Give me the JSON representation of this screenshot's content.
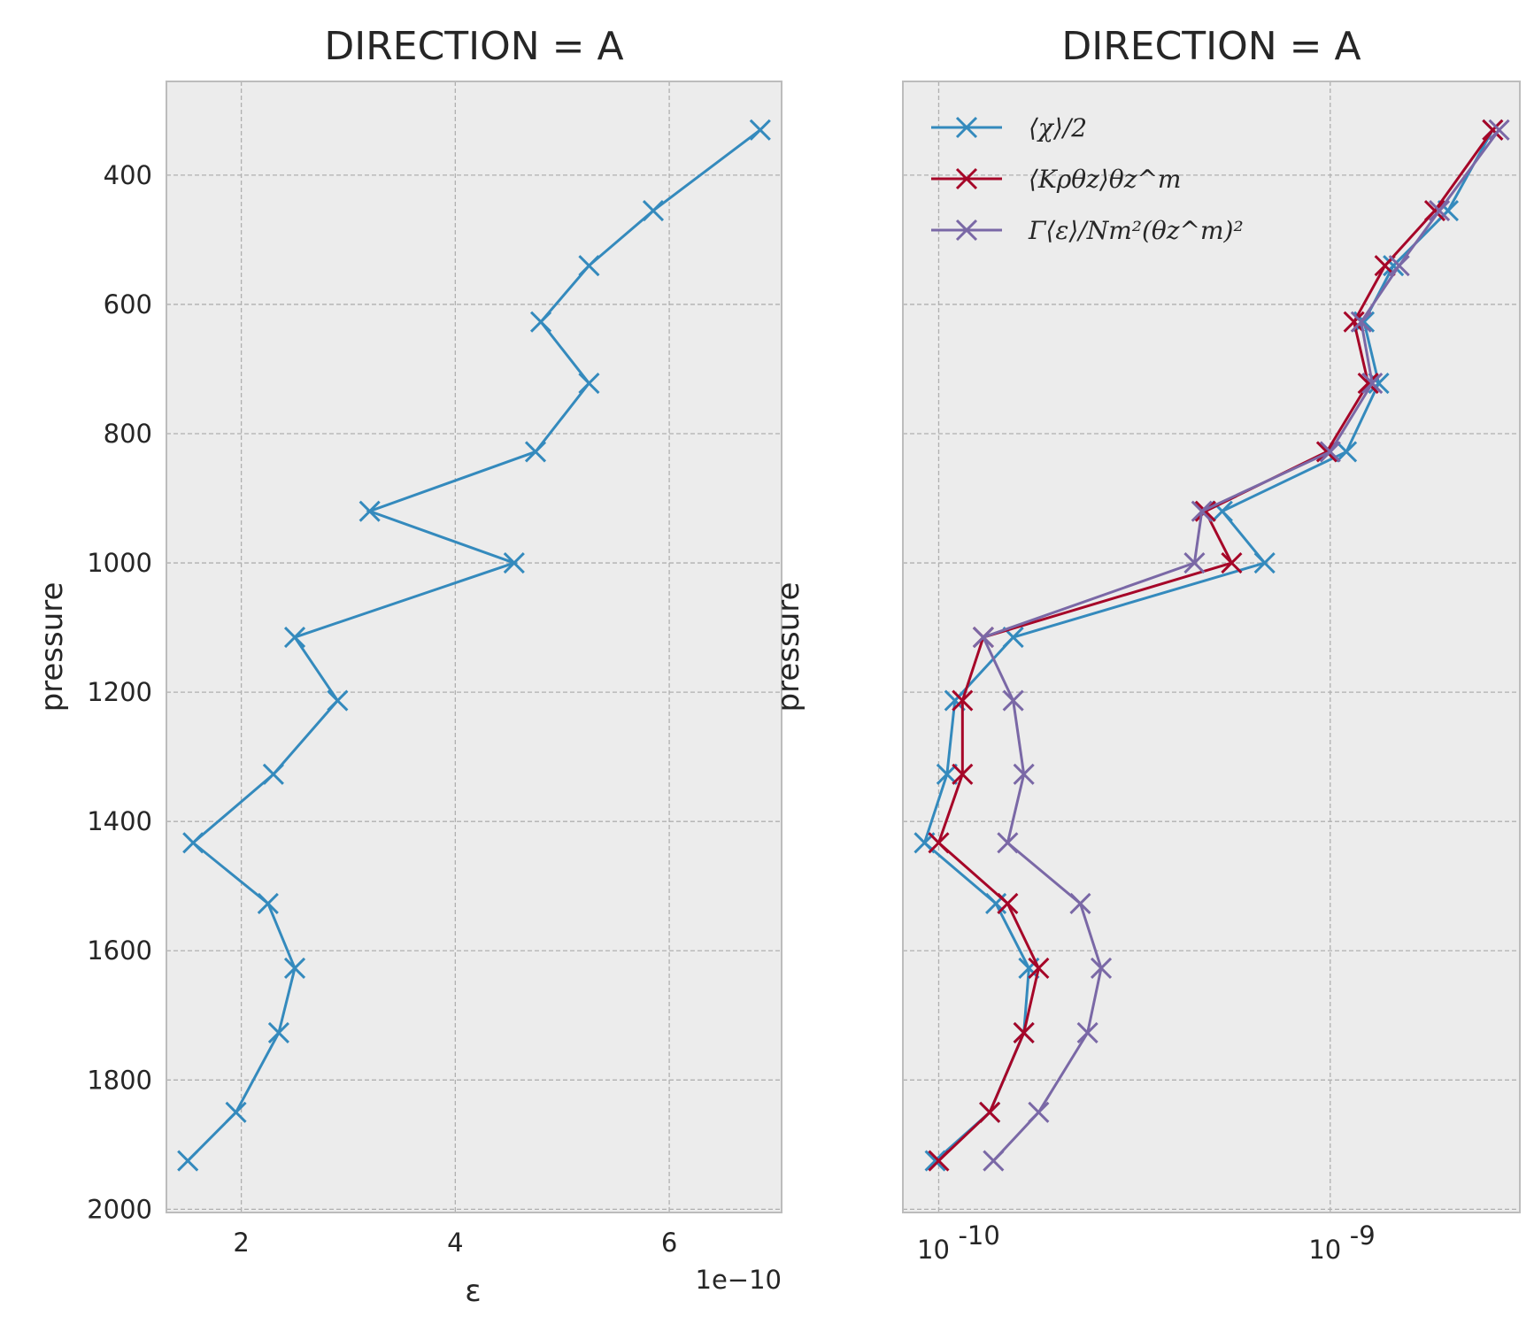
{
  "chart_data": [
    {
      "type": "line",
      "title": "DIRECTION = A",
      "xlabel": "ε",
      "ylabel": "pressure",
      "x_offset_label": "1e−10",
      "x_scale_factor": 1e-10,
      "xlim": [
        1.3,
        7.05
      ],
      "ylim": [
        2005,
        255
      ],
      "xticks": [
        2,
        4,
        6
      ],
      "xtick_labels": [
        "2",
        "4",
        "6"
      ],
      "yticks": [
        400,
        600,
        800,
        1000,
        1200,
        1400,
        1600,
        1800,
        2000
      ],
      "ytick_labels": [
        "400",
        "600",
        "800",
        "1000",
        "1200",
        "1400",
        "1600",
        "1800",
        "2000"
      ],
      "grid": true,
      "series": [
        {
          "name": "ε",
          "color": "#348abd",
          "marker": "x",
          "pressure": [
            330,
            455,
            540,
            627,
            722,
            828,
            920,
            1000,
            1115,
            1213,
            1327,
            1433,
            1527,
            1627,
            1727,
            1850,
            1925
          ],
          "values": [
            6.85,
            5.85,
            5.25,
            4.8,
            5.25,
            4.75,
            3.2,
            4.55,
            2.5,
            2.9,
            2.3,
            1.55,
            2.25,
            2.5,
            2.35,
            1.95,
            1.5
          ]
        }
      ]
    },
    {
      "type": "line",
      "title": "DIRECTION = A",
      "xlabel": "",
      "ylabel": "pressure",
      "xscale": "log",
      "xlim": [
        8.1e-11,
        3.05e-09
      ],
      "ylim": [
        2005,
        255
      ],
      "xticks": [
        1e-10,
        1e-09
      ],
      "xtick_labels": [
        {
          "base": "10",
          "exp": "-10"
        },
        {
          "base": "10",
          "exp": "-9"
        }
      ],
      "yticks": [
        400,
        600,
        800,
        1000,
        1200,
        1400,
        1600,
        1800,
        2000
      ],
      "grid": true,
      "legend_position": "top-left",
      "series": [
        {
          "name": "⟨χ⟩/2",
          "color": "#348abd",
          "marker": "x",
          "pressure": [
            330,
            455,
            540,
            627,
            722,
            828,
            920,
            1000,
            1115,
            1213,
            1327,
            1433,
            1527,
            1627,
            1727,
            1850,
            1925
          ],
          "values": [
            2.6e-09,
            2e-09,
            1.45e-09,
            1.22e-09,
            1.33e-09,
            1.1e-09,
            5.3e-10,
            6.8e-10,
            1.55e-10,
            1.1e-10,
            1.05e-10,
            9.2e-11,
            1.4e-10,
            1.7e-10,
            1.65e-10,
            1.35e-10,
            9.8e-11
          ]
        },
        {
          "name": "⟨Kρθz⟩θz^m",
          "color": "#a60628",
          "marker": "x",
          "pressure": [
            330,
            455,
            540,
            627,
            722,
            828,
            920,
            1000,
            1115,
            1213,
            1327,
            1433,
            1527,
            1627,
            1727,
            1850,
            1925
          ],
          "values": [
            2.6e-09,
            1.85e-09,
            1.38e-09,
            1.15e-09,
            1.25e-09,
            9.8e-10,
            4.8e-10,
            5.6e-10,
            1.3e-10,
            1.15e-10,
            1.15e-10,
            1e-10,
            1.5e-10,
            1.8e-10,
            1.65e-10,
            1.35e-10,
            1e-10
          ]
        },
        {
          "name": "Γ⟨ε⟩/Nm²(θz^m)²",
          "color": "#7a68a6",
          "marker": "x",
          "pressure": [
            330,
            455,
            540,
            627,
            722,
            828,
            920,
            1000,
            1115,
            1213,
            1327,
            1433,
            1527,
            1627,
            1727,
            1850,
            1925
          ],
          "values": [
            2.7e-09,
            1.9e-09,
            1.5e-09,
            1.2e-09,
            1.28e-09,
            1e-09,
            4.7e-10,
            4.5e-10,
            1.3e-10,
            1.55e-10,
            1.65e-10,
            1.5e-10,
            2.3e-10,
            2.6e-10,
            2.4e-10,
            1.8e-10,
            1.38e-10
          ]
        }
      ]
    }
  ]
}
